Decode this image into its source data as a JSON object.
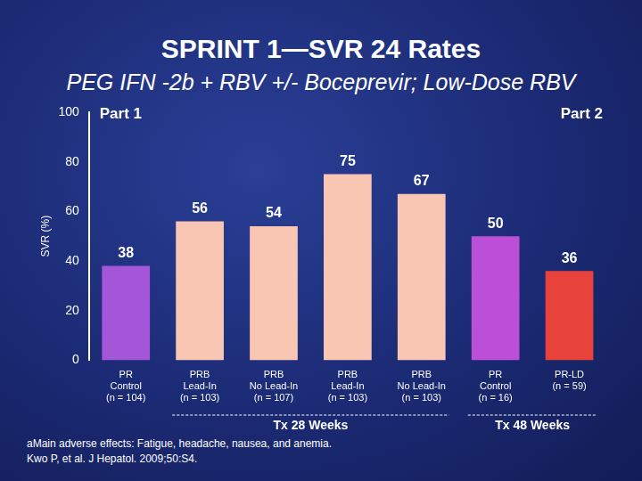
{
  "chart_data": {
    "type": "bar",
    "title": "SPRINT 1—SVR 24 Rates",
    "subtitle": "PEG IFN -2b + RBV +/- Boceprevir; Low-Dose RBV",
    "y_label": "SVR (%)",
    "categories": [
      [
        "PR",
        "Control",
        "(n = 104)"
      ],
      [
        "PRB",
        "Lead-In",
        "(n = 103)"
      ],
      [
        "PRB",
        "No Lead-In",
        "(n = 107)"
      ],
      [
        "PRB",
        "Lead-In",
        "(n = 103)"
      ],
      [
        "PRB",
        "No Lead-In",
        "(n = 103)"
      ],
      [
        "PR",
        "Control",
        "(n = 16)"
      ],
      [
        "PR-LD",
        "(n = 59)"
      ]
    ],
    "values": [
      38,
      56,
      54,
      75,
      67,
      50,
      36
    ],
    "colors": [
      "#a456d8",
      "#f9c6b3",
      "#f9c6b3",
      "#f9c6b3",
      "#f9c6b3",
      "#bc4fd8",
      "#e8433b"
    ],
    "ylim": [
      0,
      100
    ],
    "yticks": [
      0,
      20,
      40,
      60,
      80,
      100
    ],
    "grid": false,
    "data_labels": true,
    "annotations": [
      "Part 1",
      "Part 2",
      "Tx 28 Weeks",
      "Tx 48 Weeks"
    ],
    "notes": [
      "aMain adverse effects: Fatigue, headache, nausea, and anemia.",
      "Kwo P, et al. J Hepatol. 2009;50:S4."
    ]
  }
}
